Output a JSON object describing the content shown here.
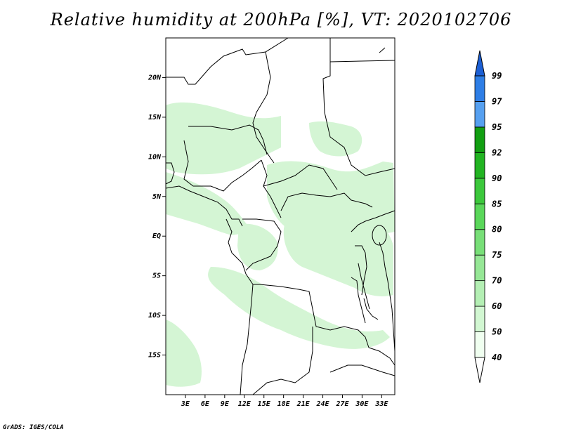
{
  "title": "Relative humidity at 200hPa [%], VT: 2020102706",
  "credit": "GrADS: IGES/COLA",
  "map": {
    "lon_range": [
      0,
      35
    ],
    "lat_range": [
      -20,
      25
    ],
    "lon_ticks": [
      "3E",
      "6E",
      "9E",
      "12E",
      "15E",
      "18E",
      "21E",
      "24E",
      "27E",
      "30E",
      "33E"
    ],
    "lat_ticks": [
      "20N",
      "15N",
      "10N",
      "5N",
      "EQ",
      "5S",
      "10S",
      "15S"
    ]
  },
  "colorbar": {
    "levels": [
      "40",
      "50",
      "60",
      "70",
      "75",
      "80",
      "85",
      "90",
      "92",
      "95",
      "97",
      "99"
    ],
    "colors": [
      "#f0fff0",
      "#d2f7d2",
      "#b4efb4",
      "#96e796",
      "#78df78",
      "#5ad75a",
      "#3cc83c",
      "#22b422",
      "#129f12",
      "#56a0f0",
      "#2e7ee6",
      "#1c5fd4"
    ]
  }
}
